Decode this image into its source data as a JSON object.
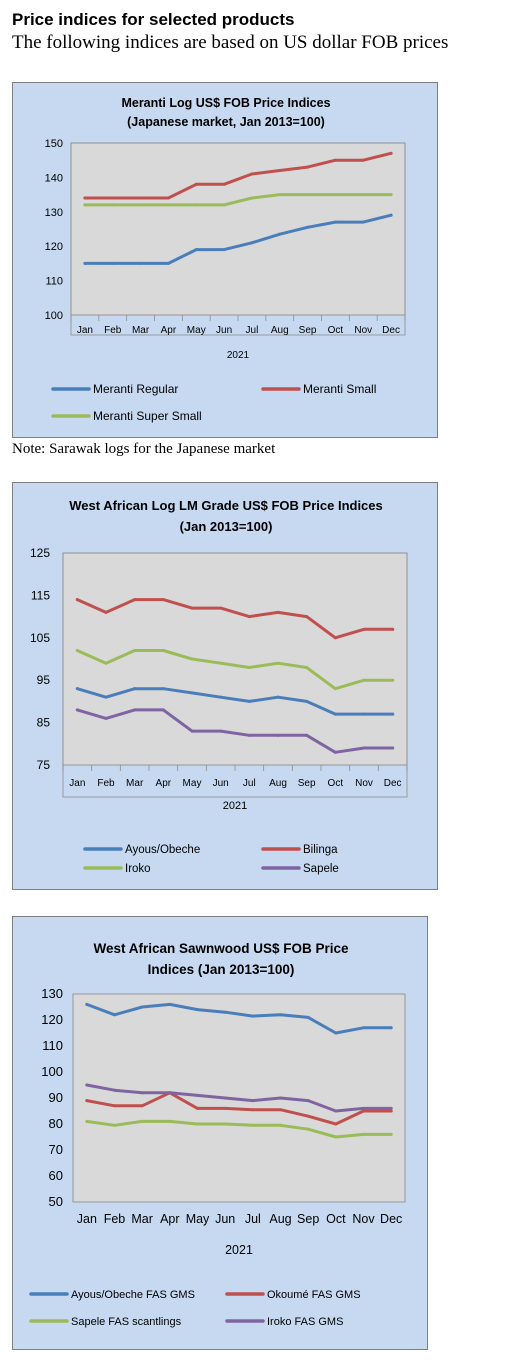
{
  "page": {
    "heading": "Price indices for selected products",
    "subheading": "The following indices are based on US dollar FOB prices",
    "note": "Note: Sarawak logs for the Japanese market"
  },
  "chart_data": [
    {
      "type": "line",
      "title": [
        "Meranti Log US$ FOB Price Indices",
        "(Japanese market, Jan 2013=100)"
      ],
      "xlabel": "2021",
      "ylabel": "",
      "categories": [
        "Jan",
        "Feb",
        "Mar",
        "Apr",
        "May",
        "Jun",
        "Jul",
        "Aug",
        "Sep",
        "Oct",
        "Nov",
        "Dec"
      ],
      "ylim": [
        100,
        150
      ],
      "yticks": [
        100,
        110,
        120,
        130,
        140,
        150
      ],
      "grid": false,
      "legend_position": "bottom",
      "series": [
        {
          "name": "Meranti Regular",
          "color": "#4a7ebb",
          "values": [
            115,
            115,
            115,
            115,
            119,
            119,
            121,
            123.5,
            125.5,
            127,
            127,
            129
          ]
        },
        {
          "name": "Meranti Small",
          "color": "#c0504d",
          "values": [
            134,
            134,
            134,
            134,
            138,
            138,
            141,
            142,
            143,
            145,
            145,
            147
          ]
        },
        {
          "name": "Meranti Super Small",
          "color": "#9bbb59",
          "values": [
            132,
            132,
            132,
            132,
            132,
            132,
            134,
            135,
            135,
            135,
            135,
            135
          ]
        }
      ]
    },
    {
      "type": "line",
      "title": [
        "West African Log LM Grade US$ FOB Price Indices",
        "(Jan 2013=100)"
      ],
      "xlabel": "2021",
      "ylabel": "",
      "categories": [
        "Jan",
        "Feb",
        "Mar",
        "Apr",
        "May",
        "Jun",
        "Jul",
        "Aug",
        "Sep",
        "Oct",
        "Nov",
        "Dec"
      ],
      "ylim": [
        75,
        125
      ],
      "yticks": [
        75,
        85,
        95,
        105,
        115,
        125
      ],
      "grid": false,
      "legend_position": "bottom",
      "series": [
        {
          "name": "Ayous/Obeche",
          "color": "#4a7ebb",
          "values": [
            93,
            91,
            93,
            93,
            92,
            91,
            90,
            91,
            90,
            87,
            87,
            87
          ]
        },
        {
          "name": "Bilinga",
          "color": "#c0504d",
          "values": [
            114,
            111,
            114,
            114,
            112,
            112,
            110,
            111,
            110,
            105,
            107,
            107
          ]
        },
        {
          "name": "Iroko",
          "color": "#9bbb59",
          "values": [
            102,
            99,
            102,
            102,
            100,
            99,
            98,
            99,
            98,
            93,
            95,
            95
          ]
        },
        {
          "name": "Sapele",
          "color": "#8064a2",
          "values": [
            88,
            86,
            88,
            88,
            83,
            83,
            82,
            82,
            82,
            78,
            79,
            79
          ]
        }
      ]
    },
    {
      "type": "line",
      "title": [
        "West African Sawnwood US$ FOB Price",
        "Indices (Jan 2013=100)"
      ],
      "xlabel": "2021",
      "ylabel": "",
      "categories": [
        "Jan",
        "Feb",
        "Mar",
        "Apr",
        "May",
        "Jun",
        "Jul",
        "Aug",
        "Sep",
        "Oct",
        "Nov",
        "Dec"
      ],
      "ylim": [
        50,
        130
      ],
      "yticks": [
        50,
        60,
        70,
        80,
        90,
        100,
        110,
        120,
        130
      ],
      "grid": false,
      "legend_position": "bottom",
      "series": [
        {
          "name": "Ayous/Obeche  FAS GMS",
          "color": "#4a7ebb",
          "values": [
            126,
            122,
            125,
            126,
            124,
            123,
            121.5,
            122,
            121,
            115,
            117,
            117
          ]
        },
        {
          "name": "Okoumé  FAS GMS",
          "color": "#c0504d",
          "values": [
            89,
            87,
            87,
            92,
            86,
            86,
            85.5,
            85.5,
            83,
            80,
            85,
            85
          ]
        },
        {
          "name": "Sapele FAS scantlings",
          "color": "#9bbb59",
          "values": [
            81,
            79.5,
            81,
            81,
            80,
            80,
            79.5,
            79.5,
            78,
            75,
            76,
            76
          ]
        },
        {
          "name": "Iroko FAS GMS",
          "color": "#8064a2",
          "values": [
            95,
            93,
            92,
            92,
            91,
            90,
            89,
            90,
            89,
            85,
            86,
            86
          ]
        }
      ]
    }
  ]
}
